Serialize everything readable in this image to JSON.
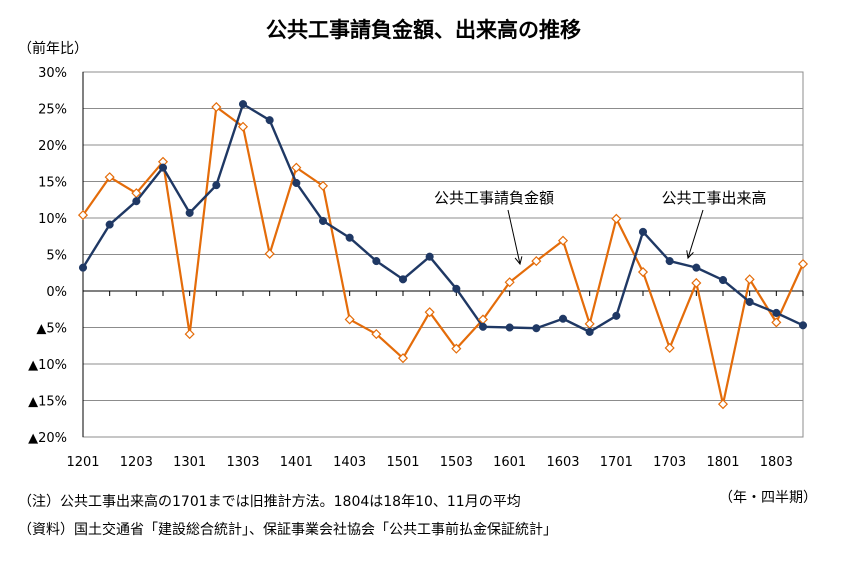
{
  "chart_data": {
    "type": "line",
    "title": "公共工事請負金額、出来高の推移",
    "ylabel": "（前年比）",
    "xlabel": "（年・四半期）",
    "ylim": [
      -20,
      30
    ],
    "y_ticks": [
      30,
      25,
      20,
      15,
      10,
      5,
      0,
      -5,
      -10,
      -15,
      -20
    ],
    "y_tick_labels": [
      "30%",
      "25%",
      "20%",
      "15%",
      "10%",
      "5%",
      "0%",
      "▲5%",
      "▲10%",
      "▲15%",
      "▲20%"
    ],
    "x": [
      "1201",
      "1202",
      "1203",
      "1204",
      "1301",
      "1302",
      "1303",
      "1304",
      "1401",
      "1402",
      "1403",
      "1404",
      "1501",
      "1502",
      "1503",
      "1504",
      "1601",
      "1602",
      "1603",
      "1604",
      "1701",
      "1702",
      "1703",
      "1704",
      "1801",
      "1802",
      "1803",
      "1804"
    ],
    "x_tick_labels": [
      "1201",
      "1203",
      "1301",
      "1303",
      "1401",
      "1403",
      "1501",
      "1503",
      "1601",
      "1603",
      "1701",
      "1703",
      "1801",
      "1803"
    ],
    "grid": true,
    "series": [
      {
        "name": "公共工事請負金額",
        "color": "#E46C0A",
        "marker": "diamond-open",
        "values": [
          10.4,
          15.6,
          13.4,
          17.7,
          -5.9,
          25.2,
          22.5,
          5.1,
          16.9,
          14.4,
          -3.9,
          -5.9,
          -9.2,
          -2.9,
          -7.9,
          -3.9,
          1.2,
          4.1,
          6.9,
          -4.5,
          9.9,
          2.6,
          -7.8,
          1.1,
          -15.5,
          1.6,
          -4.3,
          3.7
        ]
      },
      {
        "name": "公共工事出来高",
        "color": "#1F3864",
        "marker": "circle",
        "values": [
          3.2,
          9.1,
          12.3,
          16.9,
          10.7,
          14.5,
          25.6,
          23.4,
          14.8,
          9.6,
          7.3,
          4.1,
          1.6,
          4.7,
          0.3,
          -4.9,
          -5.0,
          -5.1,
          -3.8,
          -5.6,
          -3.4,
          8.1,
          4.1,
          3.2,
          1.5,
          -1.5,
          -3.0,
          -4.7
        ]
      }
    ],
    "annotations": [
      {
        "text": "公共工事請負金額",
        "series": 0
      },
      {
        "text": "公共工事出来高",
        "series": 1
      }
    ]
  },
  "notes": {
    "note1": "（注）公共工事出来高の1701までは旧推計方法。1804は18年10、11月の平均",
    "note2": "（資料）国土交通省「建設総合統計」、保証事業会社協会「公共工事前払金保証統計」"
  }
}
